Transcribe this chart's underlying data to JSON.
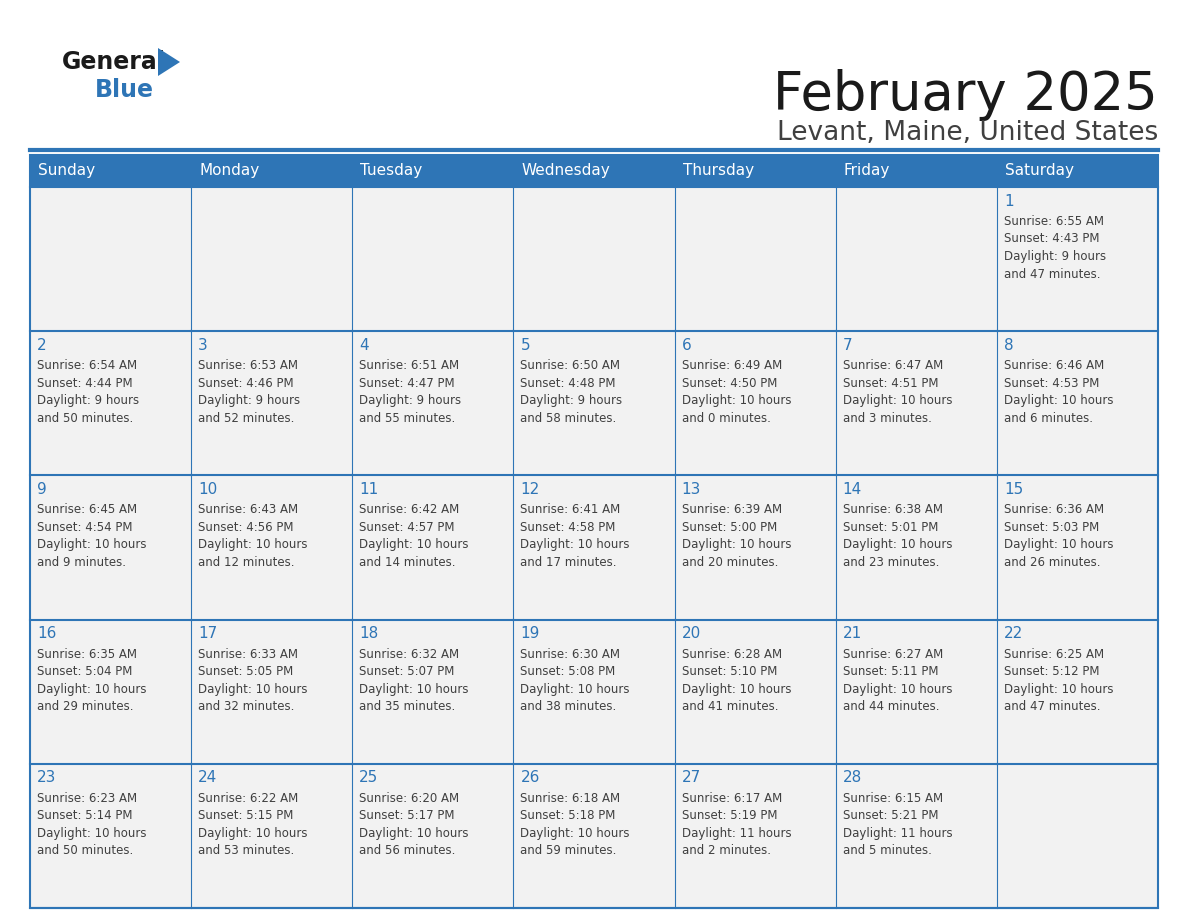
{
  "title": "February 2025",
  "subtitle": "Levant, Maine, United States",
  "header_bg": "#2E75B6",
  "header_text_color": "#FFFFFF",
  "cell_bg": "#F2F2F2",
  "border_color": "#2E75B6",
  "day_number_color": "#2E75B6",
  "text_color": "#404040",
  "days_of_week": [
    "Sunday",
    "Monday",
    "Tuesday",
    "Wednesday",
    "Thursday",
    "Friday",
    "Saturday"
  ],
  "weeks": [
    [
      {
        "day": null,
        "info": null
      },
      {
        "day": null,
        "info": null
      },
      {
        "day": null,
        "info": null
      },
      {
        "day": null,
        "info": null
      },
      {
        "day": null,
        "info": null
      },
      {
        "day": null,
        "info": null
      },
      {
        "day": "1",
        "info": "Sunrise: 6:55 AM\nSunset: 4:43 PM\nDaylight: 9 hours\nand 47 minutes."
      }
    ],
    [
      {
        "day": "2",
        "info": "Sunrise: 6:54 AM\nSunset: 4:44 PM\nDaylight: 9 hours\nand 50 minutes."
      },
      {
        "day": "3",
        "info": "Sunrise: 6:53 AM\nSunset: 4:46 PM\nDaylight: 9 hours\nand 52 minutes."
      },
      {
        "day": "4",
        "info": "Sunrise: 6:51 AM\nSunset: 4:47 PM\nDaylight: 9 hours\nand 55 minutes."
      },
      {
        "day": "5",
        "info": "Sunrise: 6:50 AM\nSunset: 4:48 PM\nDaylight: 9 hours\nand 58 minutes."
      },
      {
        "day": "6",
        "info": "Sunrise: 6:49 AM\nSunset: 4:50 PM\nDaylight: 10 hours\nand 0 minutes."
      },
      {
        "day": "7",
        "info": "Sunrise: 6:47 AM\nSunset: 4:51 PM\nDaylight: 10 hours\nand 3 minutes."
      },
      {
        "day": "8",
        "info": "Sunrise: 6:46 AM\nSunset: 4:53 PM\nDaylight: 10 hours\nand 6 minutes."
      }
    ],
    [
      {
        "day": "9",
        "info": "Sunrise: 6:45 AM\nSunset: 4:54 PM\nDaylight: 10 hours\nand 9 minutes."
      },
      {
        "day": "10",
        "info": "Sunrise: 6:43 AM\nSunset: 4:56 PM\nDaylight: 10 hours\nand 12 minutes."
      },
      {
        "day": "11",
        "info": "Sunrise: 6:42 AM\nSunset: 4:57 PM\nDaylight: 10 hours\nand 14 minutes."
      },
      {
        "day": "12",
        "info": "Sunrise: 6:41 AM\nSunset: 4:58 PM\nDaylight: 10 hours\nand 17 minutes."
      },
      {
        "day": "13",
        "info": "Sunrise: 6:39 AM\nSunset: 5:00 PM\nDaylight: 10 hours\nand 20 minutes."
      },
      {
        "day": "14",
        "info": "Sunrise: 6:38 AM\nSunset: 5:01 PM\nDaylight: 10 hours\nand 23 minutes."
      },
      {
        "day": "15",
        "info": "Sunrise: 6:36 AM\nSunset: 5:03 PM\nDaylight: 10 hours\nand 26 minutes."
      }
    ],
    [
      {
        "day": "16",
        "info": "Sunrise: 6:35 AM\nSunset: 5:04 PM\nDaylight: 10 hours\nand 29 minutes."
      },
      {
        "day": "17",
        "info": "Sunrise: 6:33 AM\nSunset: 5:05 PM\nDaylight: 10 hours\nand 32 minutes."
      },
      {
        "day": "18",
        "info": "Sunrise: 6:32 AM\nSunset: 5:07 PM\nDaylight: 10 hours\nand 35 minutes."
      },
      {
        "day": "19",
        "info": "Sunrise: 6:30 AM\nSunset: 5:08 PM\nDaylight: 10 hours\nand 38 minutes."
      },
      {
        "day": "20",
        "info": "Sunrise: 6:28 AM\nSunset: 5:10 PM\nDaylight: 10 hours\nand 41 minutes."
      },
      {
        "day": "21",
        "info": "Sunrise: 6:27 AM\nSunset: 5:11 PM\nDaylight: 10 hours\nand 44 minutes."
      },
      {
        "day": "22",
        "info": "Sunrise: 6:25 AM\nSunset: 5:12 PM\nDaylight: 10 hours\nand 47 minutes."
      }
    ],
    [
      {
        "day": "23",
        "info": "Sunrise: 6:23 AM\nSunset: 5:14 PM\nDaylight: 10 hours\nand 50 minutes."
      },
      {
        "day": "24",
        "info": "Sunrise: 6:22 AM\nSunset: 5:15 PM\nDaylight: 10 hours\nand 53 minutes."
      },
      {
        "day": "25",
        "info": "Sunrise: 6:20 AM\nSunset: 5:17 PM\nDaylight: 10 hours\nand 56 minutes."
      },
      {
        "day": "26",
        "info": "Sunrise: 6:18 AM\nSunset: 5:18 PM\nDaylight: 10 hours\nand 59 minutes."
      },
      {
        "day": "27",
        "info": "Sunrise: 6:17 AM\nSunset: 5:19 PM\nDaylight: 11 hours\nand 2 minutes."
      },
      {
        "day": "28",
        "info": "Sunrise: 6:15 AM\nSunset: 5:21 PM\nDaylight: 11 hours\nand 5 minutes."
      },
      {
        "day": null,
        "info": null
      }
    ]
  ],
  "logo_general_color": "#1a1a1a",
  "logo_blue_color": "#2E75B6"
}
